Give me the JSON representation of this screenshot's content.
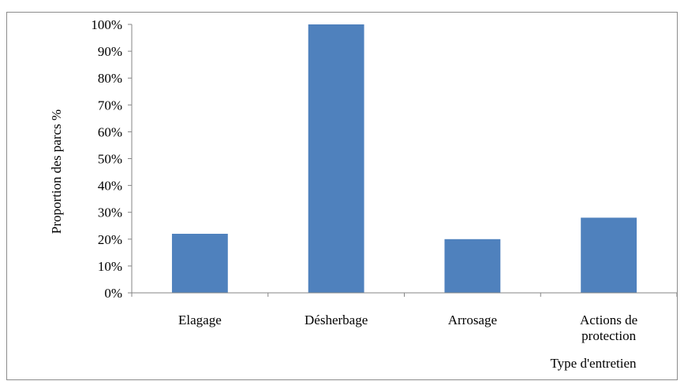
{
  "chart_data": {
    "type": "bar",
    "categories": [
      [
        "Elagage"
      ],
      [
        "Désherbage"
      ],
      [
        "Arrosage"
      ],
      [
        "Actions de",
        "protection"
      ]
    ],
    "values": [
      22,
      100,
      20,
      28
    ],
    "ylabel": "Proportion des parcs %",
    "xlabel": "Type d'entretien",
    "ylim": [
      0,
      100
    ],
    "yticks": [
      "0%",
      "10%",
      "20%",
      "30%",
      "40%",
      "50%",
      "60%",
      "70%",
      "80%",
      "90%",
      "100%"
    ],
    "grid": false,
    "legend": "none",
    "bar_color": "#4F81BD"
  }
}
